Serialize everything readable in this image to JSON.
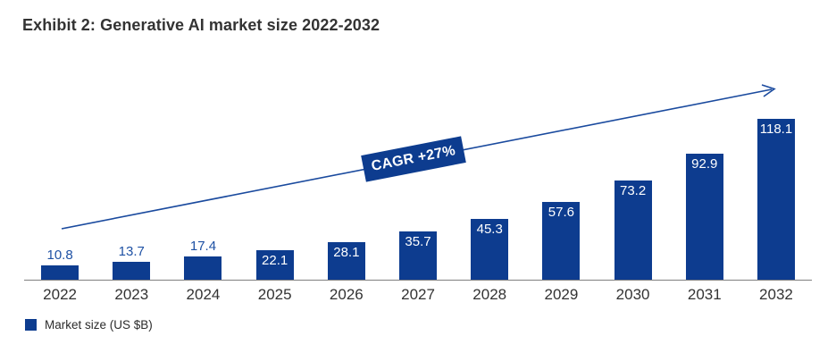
{
  "title": "Exhibit 2: Generative AI market size 2022-2032",
  "annotation": {
    "cagr_label": "CAGR +27%"
  },
  "legend": {
    "label": "Market size (US $B)"
  },
  "colors": {
    "bar": "#0d3c8f",
    "badge_background": "#0d3c8f",
    "badge_text": "#ffffff",
    "value_label_outside": "#1e51a4",
    "value_label_inside": "#ffffff",
    "trend_arrow": "#1a4a9e",
    "axis_line": "#7f7f7f",
    "title_text": "#333333"
  },
  "chart_data": {
    "type": "bar",
    "title": "Exhibit 2: Generative AI market size 2022-2032",
    "categories": [
      "2022",
      "2023",
      "2024",
      "2025",
      "2026",
      "2027",
      "2028",
      "2029",
      "2030",
      "2031",
      "2032"
    ],
    "values": [
      10.8,
      13.7,
      17.4,
      22.1,
      28.1,
      35.7,
      45.3,
      57.6,
      73.2,
      92.9,
      118.1
    ],
    "series_name": "Market size (US $B)",
    "xlabel": "",
    "ylabel": "Market size (US $B)",
    "ylim": [
      0,
      125
    ],
    "grid": false,
    "legend_position": "bottom-left",
    "annotations": [
      "CAGR +27%"
    ],
    "value_label_placement": "outside for 2022-2024, inside-top for 2025-2032"
  }
}
